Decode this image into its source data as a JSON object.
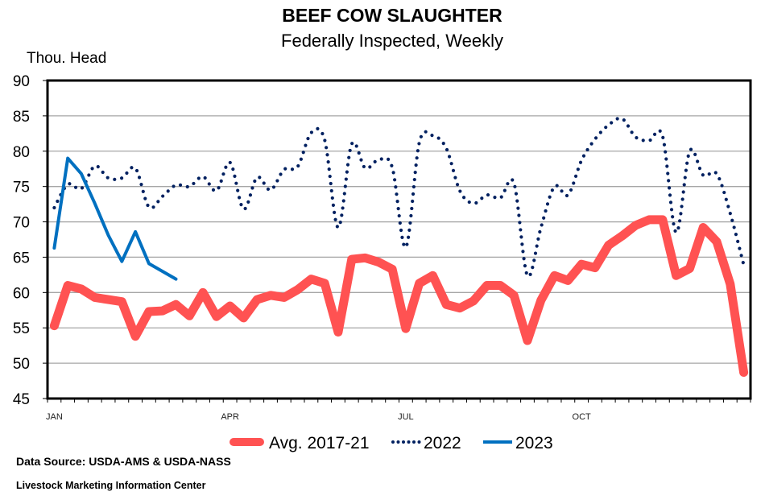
{
  "chart_data": {
    "type": "line",
    "title": "BEEF COW SLAUGHTER",
    "subtitle": "Federally Inspected, Weekly",
    "ylabel": "Thou. Head",
    "xlabel": "",
    "ylim": [
      45,
      90
    ],
    "yticks": [
      90,
      85,
      80,
      75,
      70,
      65,
      60,
      55,
      50,
      45
    ],
    "x_tick_labels": [
      {
        "label": "JAN",
        "week": 1
      },
      {
        "label": "APR",
        "week": 14
      },
      {
        "label": "JUL",
        "week": 27
      },
      {
        "label": "OCT",
        "week": 40
      }
    ],
    "x_weeks": 52,
    "grid": "horizontal",
    "legend_position": "bottom",
    "series": [
      {
        "name": "Avg. 2017-21",
        "color": "#ff5252",
        "style": "thick-solid",
        "values": [
          55.3,
          61.0,
          60.5,
          59.3,
          59.0,
          58.7,
          53.8,
          57.3,
          57.4,
          58.3,
          56.7,
          60.0,
          56.6,
          58.1,
          56.4,
          59.0,
          59.6,
          59.3,
          60.4,
          61.9,
          61.3,
          54.4,
          64.7,
          64.9,
          64.3,
          63.3,
          54.9,
          61.3,
          62.4,
          58.3,
          57.8,
          58.8,
          61.0,
          61.0,
          59.6,
          53.2,
          58.9,
          62.4,
          61.7,
          64.0,
          63.5,
          66.7,
          68.0,
          69.5,
          70.3,
          70.3,
          62.4,
          63.4,
          69.2,
          67.2,
          61.2,
          48.7
        ]
      },
      {
        "name": "2022",
        "color": "#002060",
        "style": "dotted",
        "values": [
          72.0,
          75.3,
          74.7,
          77.9,
          76.2,
          76.2,
          77.6,
          72.1,
          73.6,
          75.2,
          75.0,
          76.4,
          74.4,
          78.4,
          71.8,
          76.3,
          74.5,
          77.4,
          77.8,
          82.6,
          81.6,
          69.2,
          81.0,
          77.6,
          78.8,
          77.7,
          66.4,
          81.2,
          82.2,
          80.4,
          74.4,
          72.6,
          73.8,
          73.4,
          75.5,
          62.4,
          69.2,
          75.0,
          73.8,
          78.7,
          81.7,
          83.7,
          84.6,
          82.0,
          81.5,
          82.1,
          68.5,
          80.0,
          76.6,
          76.8,
          71.2,
          63.9
        ]
      },
      {
        "name": "2023",
        "color": "#0070c0",
        "style": "solid",
        "values": [
          66.3,
          79.0,
          76.8,
          72.6,
          68.1,
          64.4,
          68.6,
          64.1,
          63.0,
          61.9
        ]
      }
    ]
  },
  "footer": {
    "source": "Data Source:  USDA-AMS & USDA-NASS",
    "org": "Livestock Marketing Information Center"
  }
}
